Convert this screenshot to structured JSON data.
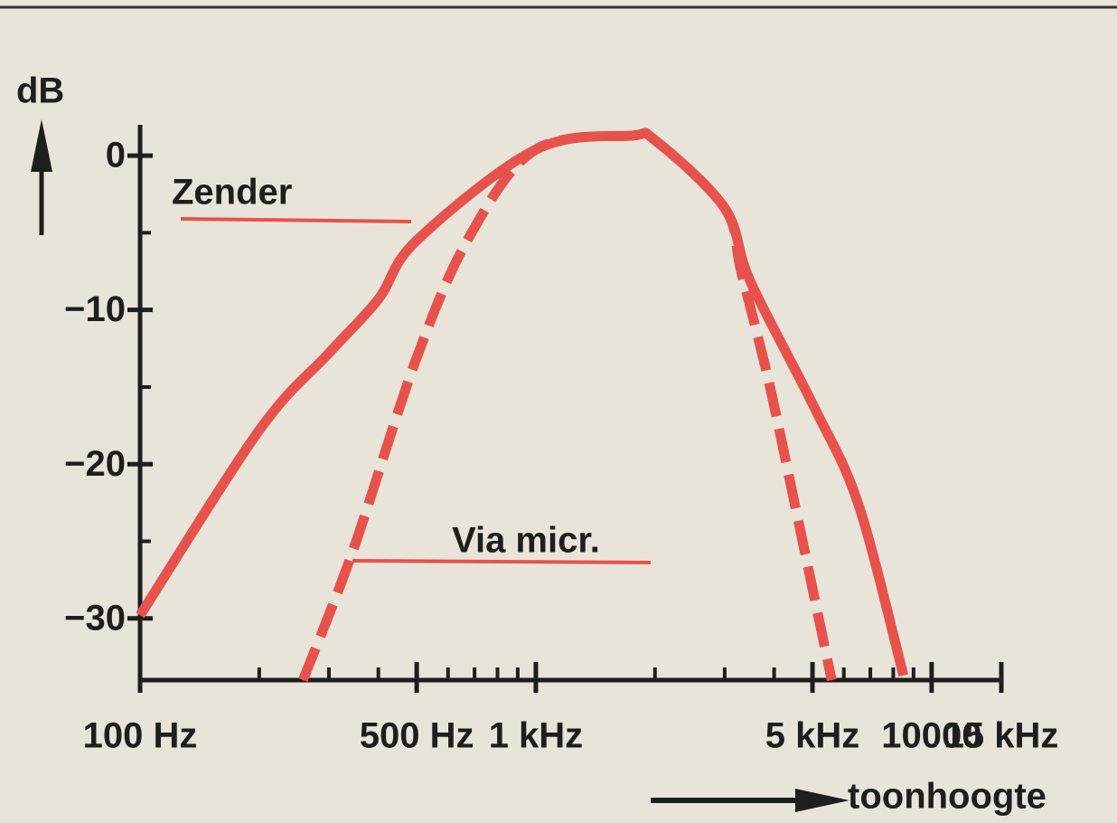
{
  "chart_data": {
    "type": "line",
    "y_label": "dB",
    "x_label": "toonhoogte",
    "log_x": true,
    "xlim": [
      100,
      15000
    ],
    "xticks": [
      {
        "value": 100,
        "label": "100 Hz"
      },
      {
        "value": 500,
        "label": "500 Hz"
      },
      {
        "value": 1000,
        "label": "1 kHz"
      },
      {
        "value": 5000,
        "label": "5 kHz"
      },
      10000,
      {
        "value": 15000,
        "label": "15 kHz"
      }
    ],
    "xminorticks": [
      200,
      300,
      400,
      600,
      700,
      800,
      900,
      2000,
      3000,
      4000,
      6000,
      7000,
      8000,
      9000
    ],
    "ylim": [
      -34,
      2
    ],
    "yticks": [
      0,
      {
        "value": -10,
        "label": "−10"
      },
      {
        "value": -20,
        "label": "−20"
      },
      {
        "value": -30,
        "label": "−30"
      }
    ],
    "yminorticks": [
      -5,
      -15,
      -25
    ],
    "series": [
      {
        "name": "Zender",
        "color": "#e8524c",
        "dashed": false,
        "x": [
          100,
          200,
          300,
          400,
          500,
          1000,
          1750,
          2000,
          3000,
          3475,
          5025,
          6530,
          8490
        ],
        "values": [
          -29.8,
          -17.8,
          -12.8,
          -9.3,
          -5.5,
          0.4,
          1.3,
          1,
          -3.4,
          -8.1,
          -16.2,
          -22.6,
          -33.7
        ]
      },
      {
        "name": "Via micr.",
        "color": "#e8524c",
        "dashed": true,
        "x": [
          258,
          344,
          500,
          681,
          1000,
          1750,
          2000,
          3000,
          3300,
          3865,
          4520,
          5590
        ],
        "values": [
          -34,
          -25.7,
          -13.1,
          -5.2,
          0.4,
          1.3,
          1,
          -3.4,
          -7.5,
          -14.5,
          -22.7,
          -34
        ]
      }
    ]
  }
}
